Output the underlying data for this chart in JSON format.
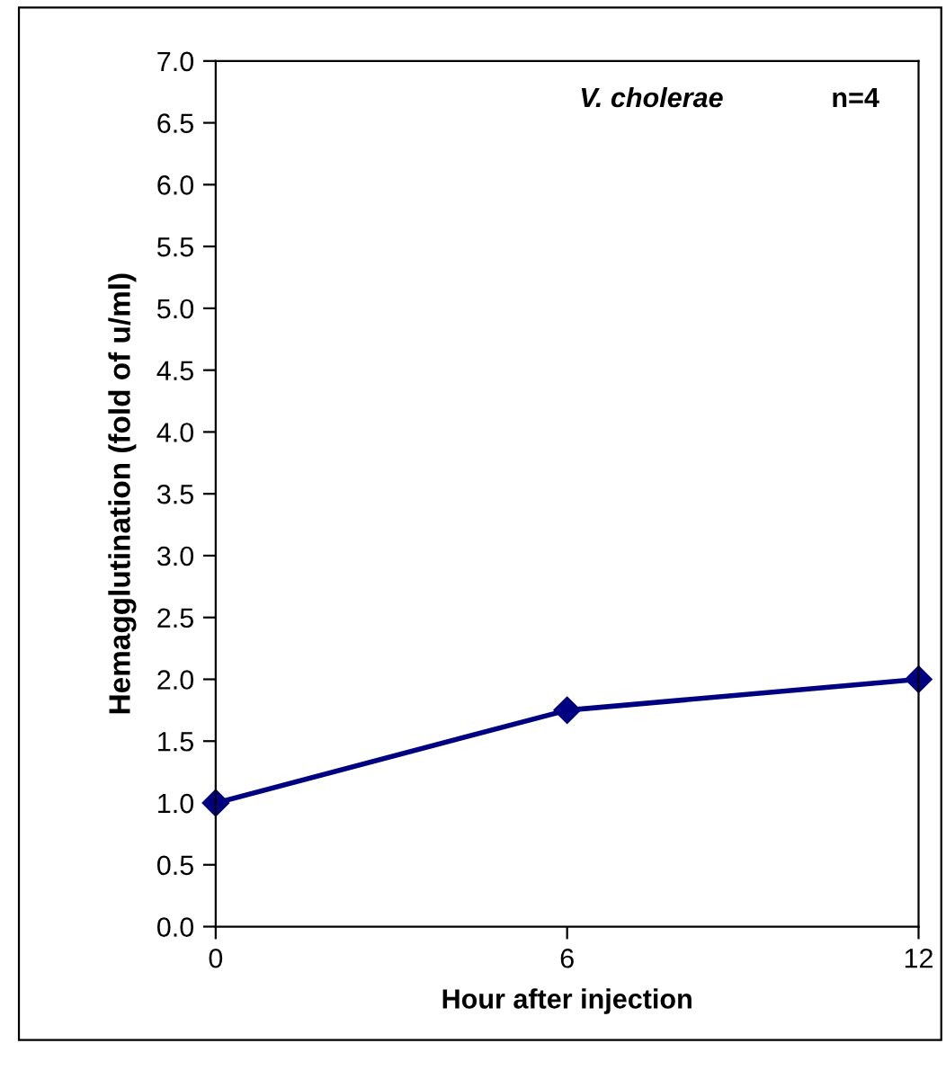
{
  "chart_data": {
    "type": "line",
    "xlabel": "Hour after injection",
    "ylabel": "Hemagglutination (fold of u/ml)",
    "x": [
      0,
      6,
      12
    ],
    "series": [
      {
        "color": "#000080",
        "values": [
          1.0,
          1.75,
          2.0
        ]
      }
    ],
    "xlim": [
      0,
      12
    ],
    "xticks": [
      0,
      6,
      12
    ],
    "ylim": [
      0,
      7
    ],
    "yticks": [
      {
        "value": 0,
        "label": "0.0"
      },
      {
        "value": 0.5,
        "label": "0.5"
      },
      {
        "value": 1,
        "label": "1.0"
      },
      {
        "value": 1.5,
        "label": "1.5"
      },
      {
        "value": 2,
        "label": "2.0"
      },
      {
        "value": 2.5,
        "label": "2.5"
      },
      {
        "value": 3,
        "label": "3.0"
      },
      {
        "value": 3.5,
        "label": "3.5"
      },
      {
        "value": 4,
        "label": "4.0"
      },
      {
        "value": 4.5,
        "label": "4.5"
      },
      {
        "value": 5,
        "label": "5.0"
      },
      {
        "value": 5.5,
        "label": "5.5"
      },
      {
        "value": 6,
        "label": "6.0"
      },
      {
        "value": 6.5,
        "label": "6.5"
      },
      {
        "value": 7,
        "label": "7.0"
      }
    ],
    "annotations": [
      "V. cholerae",
      "n=4"
    ],
    "marker": "diamond",
    "line_style": "solid",
    "grid": false,
    "legend": false
  }
}
